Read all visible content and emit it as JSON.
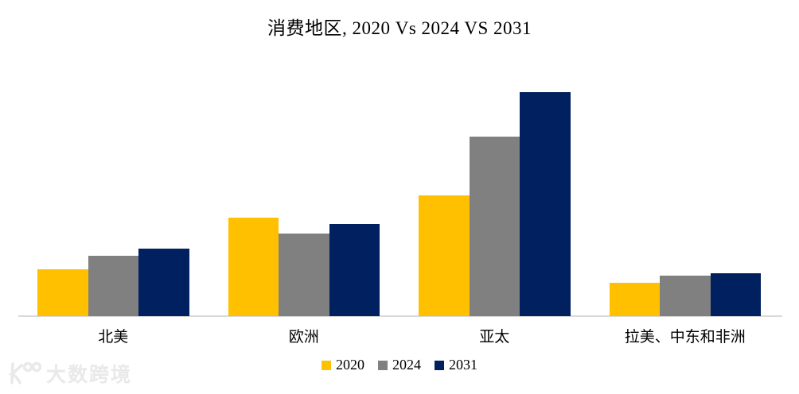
{
  "title": "消费地区, 2020 Vs 2024 VS 2031",
  "chart_data": {
    "type": "bar",
    "title": "消费地区, 2020 Vs 2024 VS 2031",
    "categories": [
      "北美",
      "欧洲",
      "亚太",
      "拉美、中东和非洲"
    ],
    "series": [
      {
        "name": "2020",
        "color": "#FFC000",
        "values": [
          21,
          44,
          54,
          15
        ]
      },
      {
        "name": "2024",
        "color": "#808080",
        "values": [
          27,
          37,
          80,
          18
        ]
      },
      {
        "name": "2031",
        "color": "#002060",
        "values": [
          30,
          41,
          100,
          19
        ]
      }
    ],
    "value_units": "relative (tallest bar = 100, no value axis shown)",
    "ylim": [
      0,
      106
    ],
    "gridlines": false,
    "y_axis_visible": false,
    "x_axis_line_color": "#D9D9D9",
    "legend_position": "bottom"
  },
  "watermark": {
    "icon": "k100-logo",
    "text": "大数跨境",
    "color": "#E9E9E9"
  }
}
